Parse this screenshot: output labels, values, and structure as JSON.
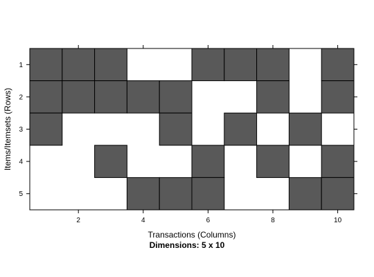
{
  "chart_data": {
    "type": "heatmap",
    "xlabel": "Transactions (Columns)",
    "ylabel": "Items/Itemsets (Rows)",
    "subtitle": "Dimensions: 5 x 10",
    "rows": [
      1,
      2,
      3,
      4,
      5
    ],
    "columns": [
      1,
      2,
      3,
      4,
      5,
      6,
      7,
      8,
      9,
      10
    ],
    "xticks": [
      2,
      4,
      6,
      8,
      10
    ],
    "yticks": [
      1,
      2,
      3,
      4,
      5
    ],
    "xlim": [
      0.5,
      10.5
    ],
    "ylim": [
      5.5,
      0.5
    ],
    "matrix": [
      [
        1,
        1,
        1,
        0,
        0,
        1,
        1,
        1,
        0,
        1
      ],
      [
        1,
        1,
        1,
        1,
        1,
        0,
        0,
        1,
        0,
        1
      ],
      [
        1,
        0,
        0,
        0,
        1,
        0,
        1,
        0,
        1,
        0
      ],
      [
        0,
        0,
        1,
        0,
        0,
        1,
        0,
        1,
        0,
        1
      ],
      [
        0,
        0,
        0,
        1,
        1,
        1,
        0,
        0,
        1,
        1
      ]
    ],
    "fill_color": "#595959",
    "empty_color": "#ffffff",
    "grid": false
  }
}
